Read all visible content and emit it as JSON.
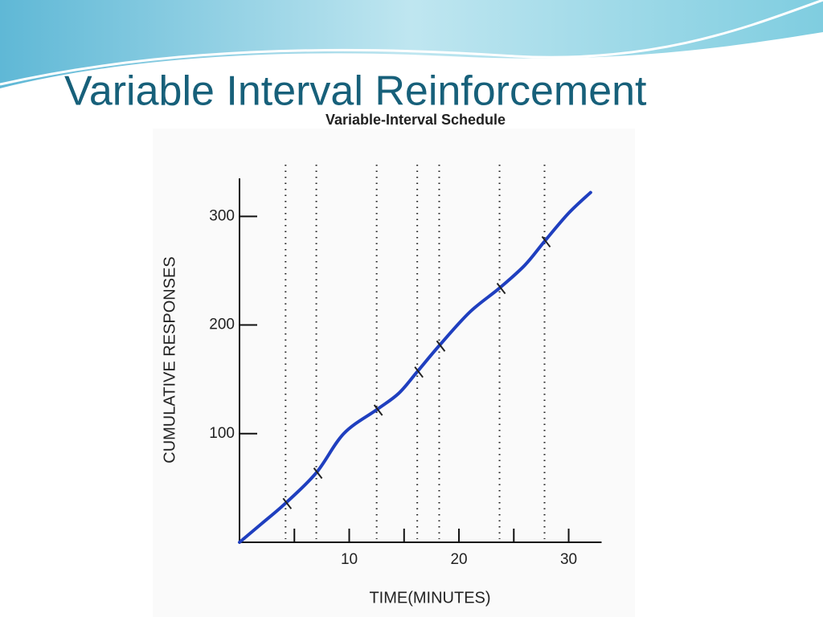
{
  "slide_title": "Variable Interval Reinforcement",
  "chart_data": {
    "type": "line",
    "title": "Variable-Interval Schedule",
    "x_label": "TIME(MINUTES)",
    "y_label": "CUMULATIVE RESPONSES",
    "x": [
      0,
      2,
      4.2,
      7,
      9.5,
      12.5,
      14.5,
      16.2,
      18.2,
      21,
      23.7,
      26,
      27.8,
      30,
      32
    ],
    "values": [
      0,
      17,
      36,
      64,
      100,
      122,
      137,
      157,
      181,
      212,
      234,
      255,
      277,
      303,
      322
    ],
    "color": "#1f3fbf",
    "reinforcements": {
      "x": [
        4.2,
        7,
        12.5,
        16.2,
        18.2,
        23.7,
        27.8
      ],
      "y": [
        36,
        64,
        122,
        157,
        181,
        234,
        277
      ]
    },
    "xlim": [
      0,
      33
    ],
    "ylim": [
      0,
      335
    ],
    "xticks": [
      10,
      20,
      30
    ],
    "xminor_ticks": [
      5,
      15,
      25
    ],
    "yticks": [
      100,
      200,
      300
    ]
  }
}
